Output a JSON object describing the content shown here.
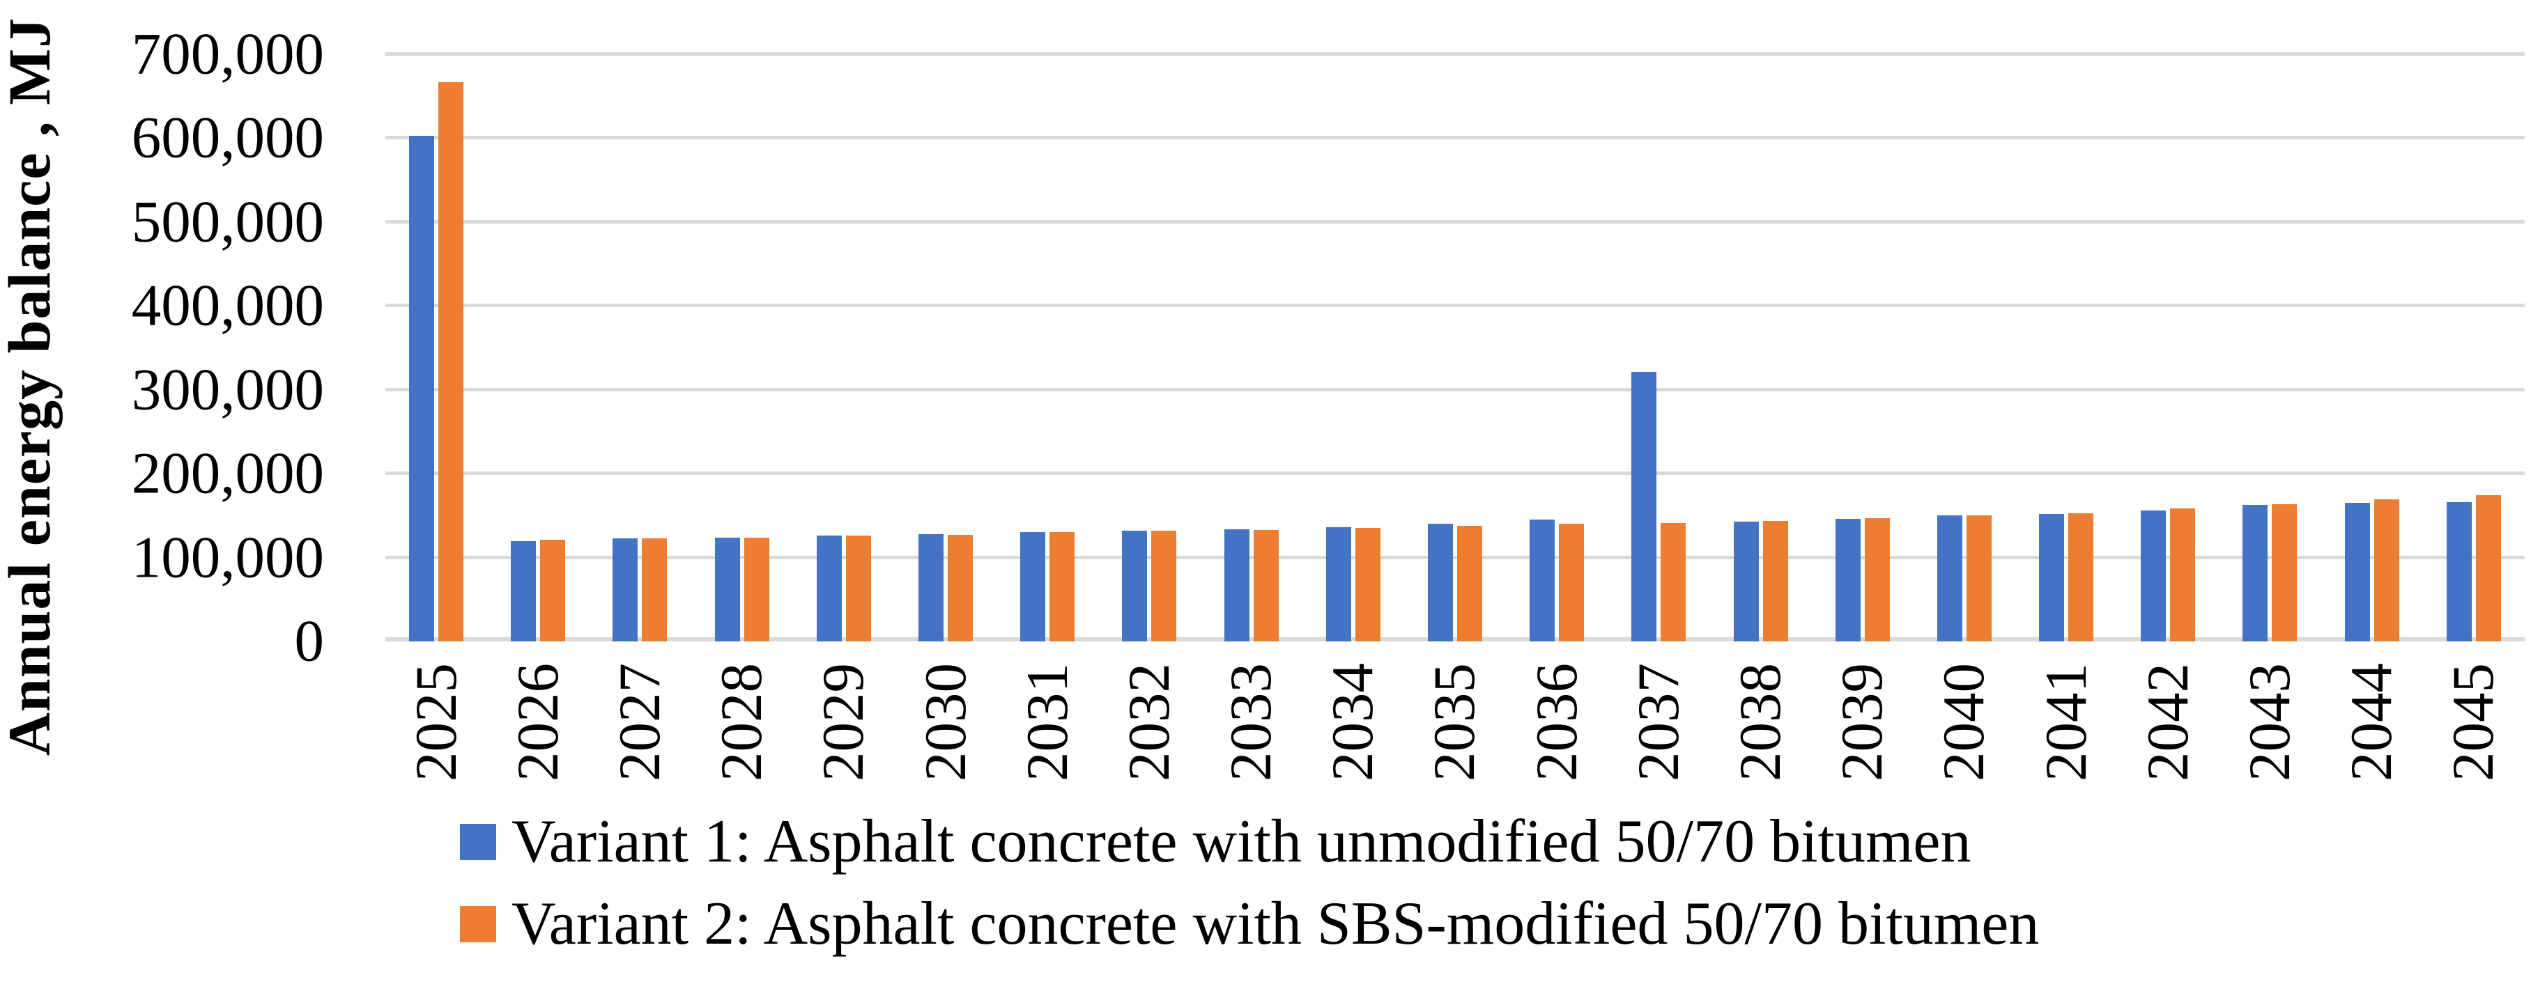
{
  "chart_data": {
    "type": "bar",
    "title": "",
    "xlabel": "",
    "ylabel": "Annual energy balance , MJ",
    "ylim": [
      0,
      700000
    ],
    "y_tick_step": 100000,
    "y_tick_labels": [
      "0",
      "100,000",
      "200,000",
      "300,000",
      "400,000",
      "500,000",
      "600,000",
      "700,000"
    ],
    "grid": true,
    "gridline_color": "#D9D9D9",
    "legend_position": "bottom-left",
    "categories": [
      "2025",
      "2026",
      "2027",
      "2028",
      "2029",
      "2030",
      "2031",
      "2032",
      "2033",
      "2034",
      "2035",
      "2036",
      "2037",
      "2038",
      "2039",
      "2040",
      "2041",
      "2042",
      "2043",
      "2044",
      "2045"
    ],
    "series": [
      {
        "name": "Variant 1: Asphalt concrete with unmodified 50/70 bitumen",
        "color": "#4472C4",
        "values": [
          603000,
          120000,
          123000,
          124000,
          126000,
          128000,
          130000,
          132000,
          134000,
          136000,
          140000,
          145000,
          321000,
          143000,
          146000,
          150000,
          152000,
          156000,
          163000,
          165000,
          166000
        ]
      },
      {
        "name": "Variant 2: Asphalt concrete with SBS-modified 50/70 bitumen",
        "color": "#ED7D31",
        "values": [
          667000,
          121000,
          123000,
          124000,
          126000,
          127000,
          130000,
          132000,
          133000,
          135000,
          138000,
          140000,
          141000,
          144000,
          147000,
          150000,
          153000,
          159000,
          164000,
          169000,
          174000
        ]
      }
    ]
  },
  "y_axis": {
    "title": "Annual energy balance , MJ"
  },
  "legend": {
    "items": [
      {
        "label": "Variant 1: Asphalt concrete with unmodified 50/70 bitumen",
        "color": "#4472C4"
      },
      {
        "label": "Variant 2: Asphalt concrete with SBS-modified 50/70 bitumen",
        "color": "#ED7D31"
      }
    ]
  }
}
